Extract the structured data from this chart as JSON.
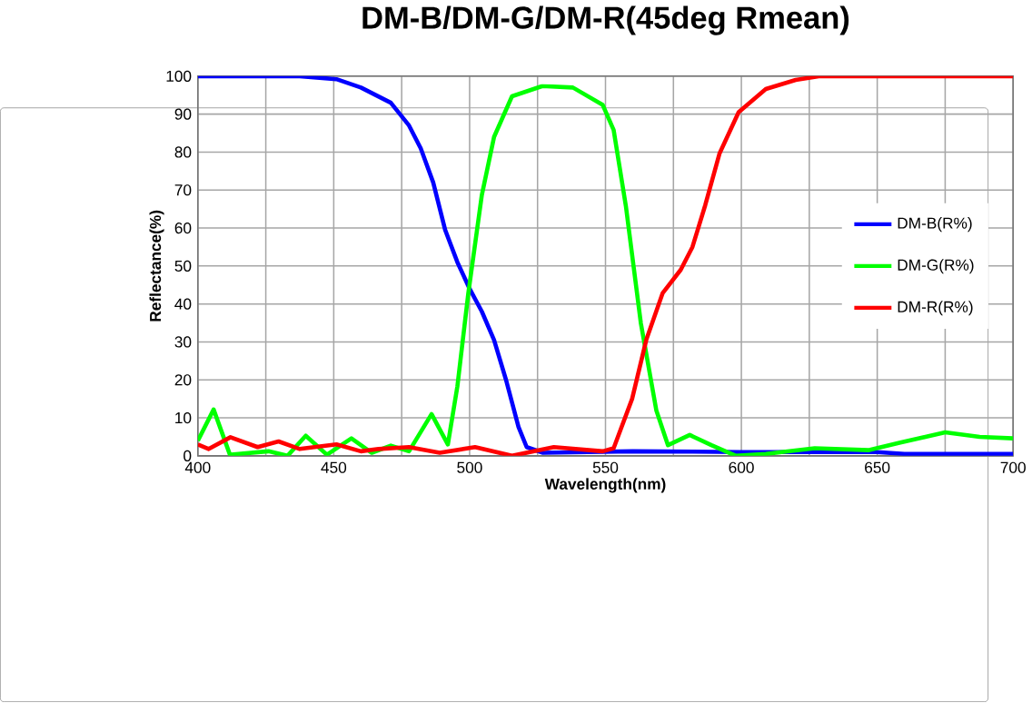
{
  "chart_data": {
    "type": "line",
    "title": "DM-B/DM-G/DM-R(45deg Rmean)",
    "xlabel": "Wavelength(nm)",
    "ylabel": "Reflectance(%)",
    "xlim": [
      400,
      700
    ],
    "xticks": [
      400,
      450,
      500,
      550,
      600,
      650,
      700
    ],
    "ylim": [
      0,
      100
    ],
    "yticks": [
      0,
      10,
      20,
      30,
      40,
      50,
      60,
      70,
      80,
      90,
      100
    ],
    "grid": true,
    "legend": "right",
    "marker": "none",
    "line_style": "solid",
    "series": [
      {
        "name": "DM-B(R%)",
        "color": "#0000ff",
        "x": [
          400,
          437.5,
          451,
          460,
          471,
          477.7,
          482,
          486.6,
          491,
          495.5,
          500,
          504.5,
          509,
          513.4,
          518,
          521,
          527,
          560,
          600,
          650,
          660,
          700
        ],
        "values": [
          100,
          100,
          99.2,
          97,
          93,
          87,
          81,
          72,
          59.5,
          51,
          44,
          38,
          30.5,
          20,
          7.6,
          2.3,
          0.8,
          1.2,
          1,
          1,
          0.5,
          0.5
        ]
      },
      {
        "name": "DM-G(R%)",
        "color": "#00ff00",
        "x": [
          400,
          405.8,
          411.8,
          426,
          433,
          439.7,
          447.5,
          456.5,
          464,
          471,
          477.7,
          486,
          492,
          495.5,
          499.5,
          504.5,
          509,
          515.6,
          526.8,
          538,
          549,
          553,
          557.5,
          563,
          568.7,
          573,
          581,
          589,
          598,
          609,
          627,
          647,
          658.5,
          675,
          687.7,
          700
        ],
        "values": [
          4,
          12.2,
          0.3,
          1.2,
          0,
          5.3,
          0.3,
          4.6,
          0.8,
          2.7,
          1.2,
          11,
          3,
          18.3,
          42.7,
          68.7,
          84,
          94.7,
          97.4,
          97,
          92.4,
          85.8,
          65.8,
          35,
          12,
          2.8,
          5.5,
          2.8,
          0,
          0.5,
          2,
          1.5,
          3.5,
          6.2,
          5,
          4.6
        ]
      },
      {
        "name": "DM-R(R%)",
        "color": "#ff0000",
        "x": [
          400,
          404,
          412,
          422,
          429.7,
          437.5,
          451,
          460,
          466.5,
          477.7,
          489,
          502,
          515.6,
          531,
          549,
          553,
          559.8,
          565,
          571,
          577.7,
          582,
          586.7,
          592,
          599,
          609,
          620,
          629,
          700
        ],
        "values": [
          3,
          1.8,
          4.9,
          2.3,
          3.8,
          1.8,
          3,
          1.2,
          1.8,
          2.3,
          0.8,
          2.3,
          0,
          2.3,
          1.2,
          2,
          15,
          30.5,
          42.8,
          49,
          55,
          66,
          79.7,
          90.5,
          96.6,
          99,
          100,
          100
        ]
      }
    ]
  }
}
